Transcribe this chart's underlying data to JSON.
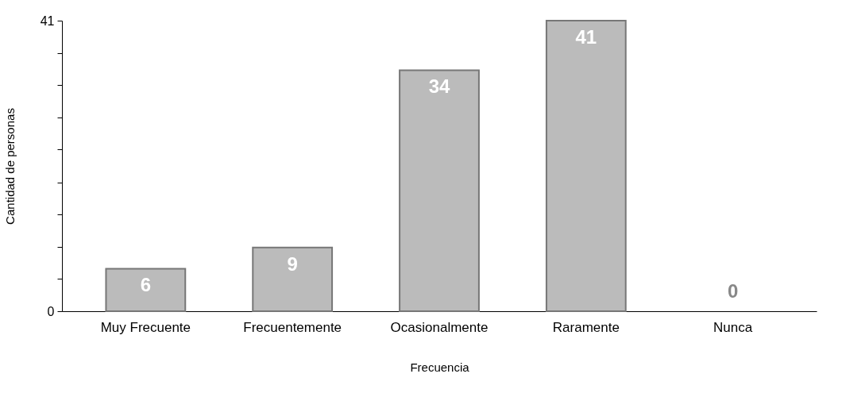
{
  "chart_data": {
    "type": "bar",
    "xlabel": "Frecuencia",
    "ylabel": "Cantidad de personas",
    "categories": [
      "Muy Frecuente",
      "Frecuentemente",
      "Ocasionalmente",
      "Raramente",
      "Nunca"
    ],
    "values": [
      6,
      9,
      34,
      41,
      0
    ],
    "color": "#bbbbbb",
    "data_labels": true,
    "ylim": [
      0,
      41
    ],
    "yticks": [
      0,
      {
        "value": 4.6,
        "label": null
      },
      {
        "value": 9.1,
        "label": null
      },
      {
        "value": 13.7,
        "label": null
      },
      {
        "value": 18.2,
        "label": null
      },
      {
        "value": 22.8,
        "label": null
      },
      {
        "value": 27.3,
        "label": null
      },
      {
        "value": 31.9,
        "label": null
      },
      {
        "value": 36.4,
        "label": null
      },
      41
    ]
  }
}
